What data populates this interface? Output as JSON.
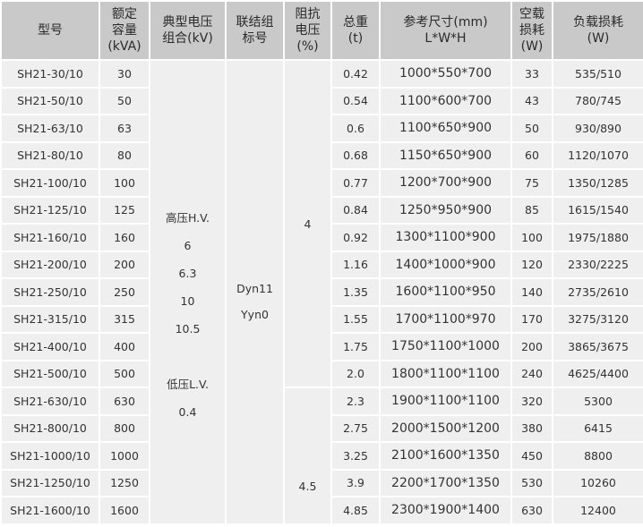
{
  "headers": [
    [
      "型号"
    ],
    [
      "额定",
      "容量",
      "(kVA)"
    ],
    [
      "典型电压",
      "组合(kV)"
    ],
    [
      "联结组",
      "标号"
    ],
    [
      "阻抗",
      "电压",
      "(%)"
    ],
    [
      "总重",
      "(t)"
    ],
    [
      "参考尺寸(mm)",
      "L*W*H"
    ],
    [
      "空载",
      "损耗",
      "(W)"
    ],
    [
      "负载损耗",
      "(W)"
    ]
  ],
  "voltage": [
    "高压H.V.",
    "6",
    "6.3",
    "10",
    "10.5",
    "",
    "低压L.V.",
    "0.4"
  ],
  "connection": [
    "Dyn11",
    "Yyn0"
  ],
  "impedance": [
    "4",
    "4.5"
  ],
  "rows": [
    [
      "SH21-30/10",
      "30",
      "0.42",
      "1000*550*700",
      "33",
      "535/510"
    ],
    [
      "SH21-50/10",
      "50",
      "0.54",
      "1100*600*700",
      "43",
      "780/745"
    ],
    [
      "SH21-63/10",
      "63",
      "0.6",
      "1100*650*900",
      "50",
      "930/890"
    ],
    [
      "SH21-80/10",
      "80",
      "0.68",
      "1150*650*900",
      "60",
      "1120/1070"
    ],
    [
      "SH21-100/10",
      "100",
      "0.77",
      "1200*700*900",
      "75",
      "1350/1285"
    ],
    [
      "SH21-125/10",
      "125",
      "0.84",
      "1250*950*900",
      "85",
      "1615/1540"
    ],
    [
      "SH21-160/10",
      "160",
      "0.92",
      "1300*1100*900",
      "100",
      "1975/1880"
    ],
    [
      "SH21-200/10",
      "200",
      "1.16",
      "1400*1000*900",
      "120",
      "2330/2225"
    ],
    [
      "SH21-250/10",
      "250",
      "1.35",
      "1600*1100*950",
      "140",
      "2735/2610"
    ],
    [
      "SH21-315/10",
      "315",
      "1.55",
      "1700*1100*970",
      "170",
      "3275/3120"
    ],
    [
      "SH21-400/10",
      "400",
      "1.75",
      "1750*1100*1000",
      "200",
      "3865/3675"
    ],
    [
      "SH21-500/10",
      "500",
      "2.0",
      "1800*1100*1100",
      "240",
      "4625/4400"
    ],
    [
      "SH21-630/10",
      "630",
      "2.3",
      "1900*1100*1100",
      "320",
      "5300"
    ],
    [
      "SH21-800/10",
      "800",
      "2.75",
      "2000*1500*1200",
      "380",
      "6415"
    ],
    [
      "SH21-1000/10",
      "1000",
      "3.25",
      "2100*1600*1350",
      "450",
      "8800"
    ],
    [
      "SH21-1250/10",
      "1250",
      "3.9",
      "2200*1700*1350",
      "530",
      "10260"
    ],
    [
      "SH21-1600/10",
      "1600",
      "4.85",
      "2300*1900*1400",
      "630",
      "12400"
    ]
  ]
}
